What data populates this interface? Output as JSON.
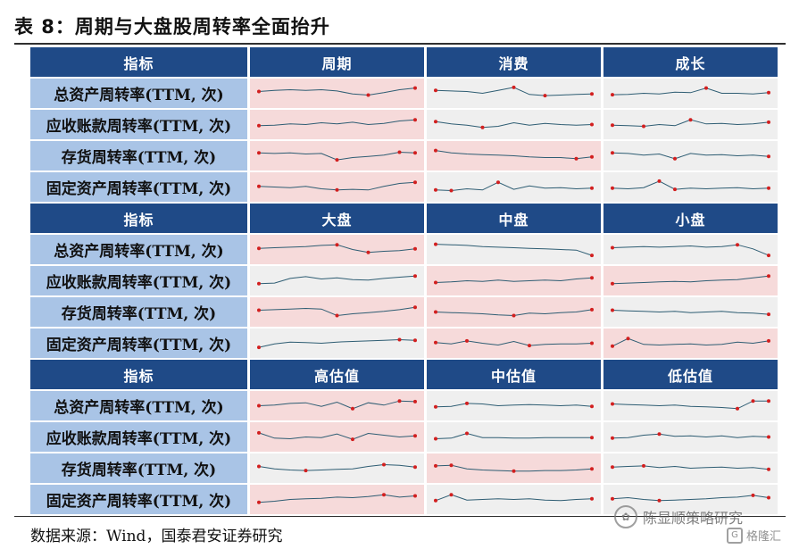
{
  "title": "表 8：周期与大盘股周转率全面抬升",
  "source": "数据来源：Wind，国泰君安证券研究",
  "watermark": "陈显顺策略研究",
  "watermark_icon": "wechat-logo-icon",
  "watermark2": "格隆汇",
  "watermark2_icon": "glh-logo-icon",
  "colors": {
    "header_bg": "#1f4a87",
    "label_bg": "#a9c4e6",
    "highlight_bg": "#f6dada",
    "neutral_bg": "#efefef",
    "line": "#2e5d73",
    "marker": "#d21f1f"
  },
  "row_labels": [
    "总资产周转率(TTM, 次)",
    "应收账款周转率(TTM, 次)",
    "存货周转率(TTM, 次)",
    "固定资产周转率(TTM, 次)"
  ],
  "sections": [
    {
      "header_label": "指标",
      "columns": [
        "周期",
        "消费",
        "成长"
      ],
      "highlight": [
        [
          1,
          0,
          0
        ],
        [
          1,
          0,
          0
        ],
        [
          1,
          1,
          0
        ],
        [
          1,
          0,
          0
        ]
      ],
      "series": [
        [
          [
            56,
            60,
            62,
            60,
            62,
            58,
            48,
            44,
            52,
            62,
            68
          ],
          [
            60,
            58,
            56,
            50,
            60,
            70,
            46,
            42,
            44,
            46,
            48
          ],
          [
            45,
            46,
            50,
            48,
            54,
            52,
            68,
            50,
            50,
            48,
            52
          ]
        ],
        [
          [
            46,
            48,
            52,
            50,
            56,
            52,
            58,
            50,
            54,
            62,
            66
          ],
          [
            60,
            52,
            48,
            40,
            44,
            56,
            48,
            54,
            50,
            48,
            50
          ],
          [
            48,
            46,
            44,
            50,
            46,
            66,
            52,
            54,
            50,
            52,
            58
          ]
        ],
        [
          [
            60,
            58,
            60,
            56,
            58,
            36,
            44,
            48,
            52,
            62,
            60
          ],
          [
            68,
            60,
            56,
            54,
            52,
            50,
            46,
            44,
            44,
            40,
            46
          ],
          [
            60,
            58,
            52,
            56,
            40,
            58,
            52,
            54,
            50,
            52,
            48
          ]
        ],
        [
          [
            52,
            50,
            48,
            52,
            44,
            40,
            42,
            40,
            52,
            62,
            66
          ],
          [
            40,
            38,
            44,
            40,
            66,
            42,
            54,
            46,
            48,
            44,
            46
          ],
          [
            46,
            44,
            48,
            70,
            42,
            46,
            44,
            46,
            48,
            44,
            46
          ]
        ]
      ]
    },
    {
      "header_label": "指标",
      "columns": [
        "大盘",
        "中盘",
        "小盘"
      ],
      "highlight": [
        [
          1,
          0,
          0
        ],
        [
          0,
          1,
          1
        ],
        [
          1,
          1,
          0
        ],
        [
          0,
          1,
          1
        ]
      ],
      "series": [
        [
          [
            54,
            56,
            58,
            60,
            64,
            66,
            50,
            40,
            44,
            46,
            52
          ],
          [
            68,
            66,
            64,
            60,
            58,
            56,
            54,
            52,
            50,
            48,
            30
          ],
          [
            56,
            58,
            60,
            58,
            60,
            62,
            58,
            60,
            66,
            52,
            30
          ]
        ],
        [
          [
            40,
            42,
            58,
            64,
            56,
            60,
            54,
            52,
            58,
            62,
            66
          ],
          [
            44,
            46,
            50,
            48,
            52,
            48,
            50,
            52,
            50,
            56,
            60
          ],
          [
            40,
            42,
            44,
            46,
            48,
            46,
            50,
            52,
            54,
            60,
            66
          ]
        ],
        [
          [
            56,
            58,
            60,
            62,
            60,
            38,
            44,
            48,
            52,
            58,
            66
          ],
          [
            50,
            48,
            46,
            44,
            40,
            38,
            46,
            44,
            48,
            50,
            58
          ],
          [
            56,
            54,
            52,
            50,
            52,
            48,
            50,
            52,
            48,
            46,
            42
          ]
        ],
        [
          [
            36,
            48,
            54,
            52,
            50,
            54,
            56,
            58,
            60,
            62,
            60
          ],
          [
            52,
            48,
            58,
            50,
            44,
            56,
            42,
            46,
            48,
            48,
            50
          ],
          [
            40,
            66,
            46,
            44,
            46,
            48,
            44,
            46,
            54,
            50,
            58
          ]
        ]
      ]
    },
    {
      "header_label": "指标",
      "columns": [
        "高估值",
        "中估值",
        "低估值"
      ],
      "highlight": [
        [
          1,
          0,
          0
        ],
        [
          1,
          0,
          0
        ],
        [
          0,
          1,
          0
        ],
        [
          1,
          0,
          0
        ]
      ],
      "series": [
        [
          [
            50,
            52,
            58,
            60,
            48,
            62,
            40,
            60,
            52,
            66,
            64
          ],
          [
            46,
            48,
            58,
            56,
            50,
            52,
            54,
            52,
            50,
            52,
            48
          ],
          [
            56,
            54,
            52,
            50,
            52,
            48,
            46,
            44,
            40,
            66,
            66
          ]
        ],
        [
          [
            64,
            46,
            44,
            50,
            48,
            60,
            42,
            62,
            56,
            50,
            54
          ],
          [
            44,
            46,
            62,
            48,
            48,
            46,
            46,
            48,
            48,
            48,
            48
          ],
          [
            46,
            48,
            56,
            60,
            52,
            54,
            50,
            54,
            48,
            52,
            50
          ]
        ],
        [
          [
            56,
            48,
            44,
            42,
            44,
            46,
            48,
            56,
            62,
            60,
            54
          ],
          [
            58,
            60,
            48,
            44,
            42,
            40,
            40,
            42,
            42,
            44,
            48
          ],
          [
            54,
            56,
            58,
            52,
            56,
            50,
            52,
            54,
            50,
            52,
            46
          ]
        ],
        [
          [
            40,
            44,
            50,
            52,
            54,
            58,
            56,
            60,
            66,
            58,
            62
          ],
          [
            46,
            66,
            48,
            50,
            52,
            50,
            52,
            48,
            46,
            50,
            52
          ],
          [
            52,
            56,
            50,
            46,
            48,
            50,
            52,
            56,
            58,
            64,
            56
          ]
        ]
      ]
    }
  ]
}
